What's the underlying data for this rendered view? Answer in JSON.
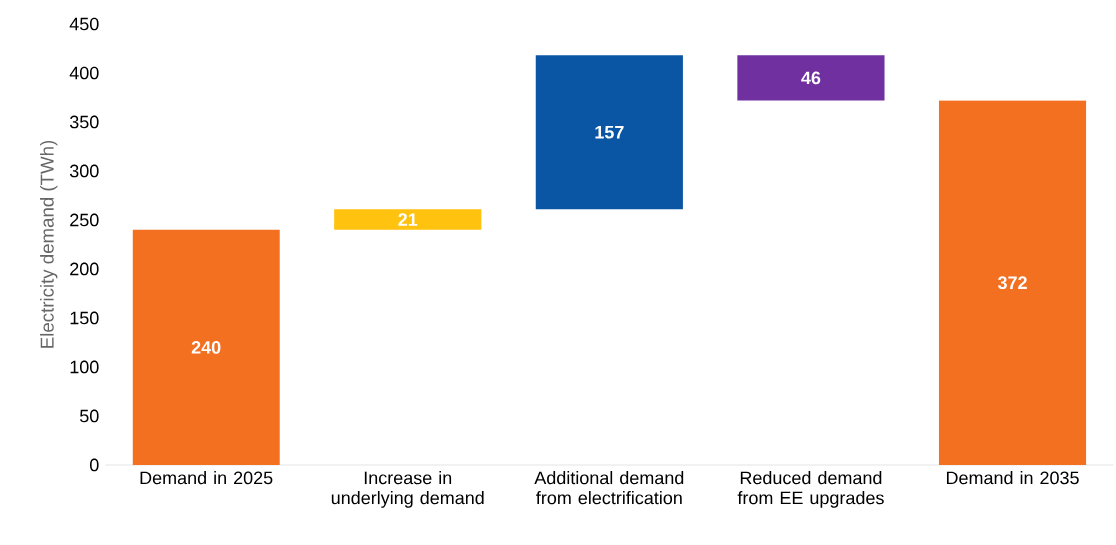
{
  "chart_data": {
    "type": "bar",
    "ylabel": "Electricity demand (TWh)",
    "categories": [
      "Demand in 2025",
      "Increase in underlying demand",
      "Additional demand from electrification",
      "Reduced demand from EE upgrades",
      "Demand in 2035"
    ],
    "values": [
      240,
      21,
      157,
      46,
      372
    ],
    "base": [
      0,
      240,
      261,
      372,
      0
    ],
    "colors": [
      "#f37021",
      "#ffc20e",
      "#0b56a4",
      "#7030a0",
      "#f37021"
    ],
    "data_labels": true,
    "ylim": [
      0,
      450
    ],
    "yticks": [
      0,
      50,
      100,
      150,
      200,
      250,
      300,
      350,
      400,
      450
    ]
  }
}
